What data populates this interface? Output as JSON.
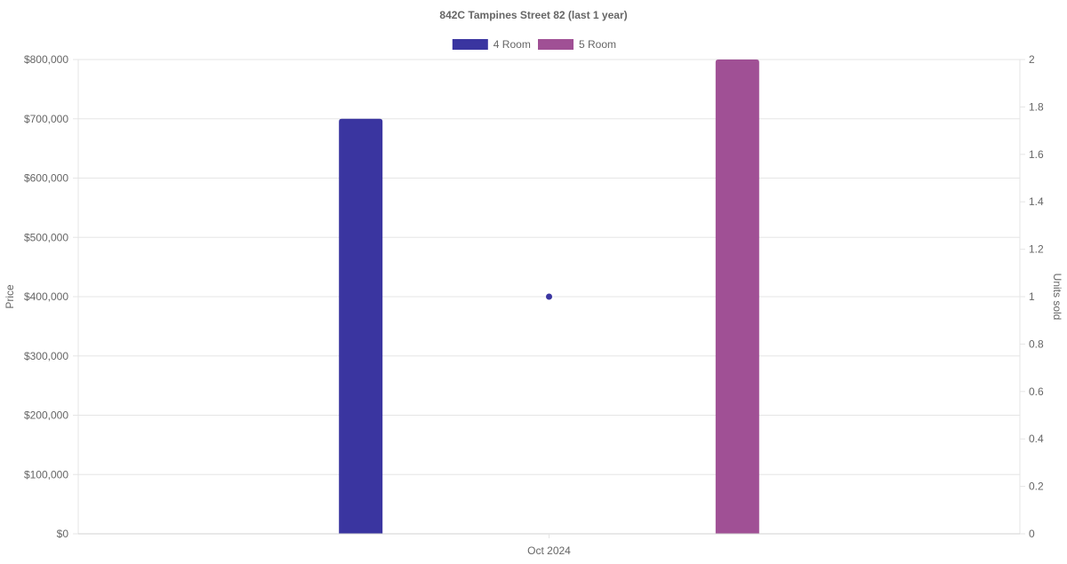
{
  "chart_data": {
    "type": "bar",
    "title": "842C Tampines Street 82 (last 1 year)",
    "categories": [
      "Oct 2024"
    ],
    "series": [
      {
        "name": "4 Room",
        "type": "bar",
        "axis": "y",
        "color": "#3a35a0",
        "values": [
          700000
        ]
      },
      {
        "name": "5 Room",
        "type": "bar",
        "axis": "y",
        "color": "#a05095",
        "values": [
          800000
        ]
      },
      {
        "type": "scatter",
        "axis": "y2",
        "color": "#3a35a0",
        "values": [
          1
        ]
      }
    ],
    "y_axis": {
      "label": "Price",
      "ylim": [
        0,
        800000
      ],
      "ticks": [
        "$0",
        "$100,000",
        "$200,000",
        "$300,000",
        "$400,000",
        "$500,000",
        "$600,000",
        "$700,000",
        "$800,000"
      ]
    },
    "y2_axis": {
      "label": "Units sold",
      "ylim": [
        0,
        2
      ],
      "ticks": [
        "0",
        "0.2",
        "0.4",
        "0.6",
        "0.8",
        "1",
        "1.2",
        "1.4",
        "1.6",
        "1.8",
        "2"
      ]
    },
    "grid": true,
    "legend_position": "top-center"
  }
}
